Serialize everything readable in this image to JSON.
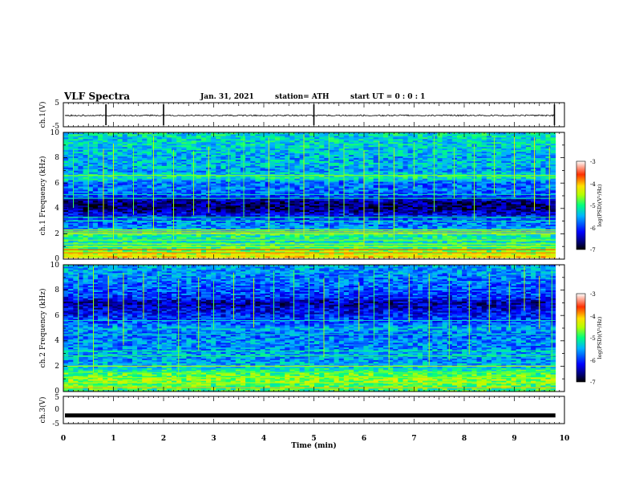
{
  "header": {
    "title": "VLF Spectra",
    "date": "Jan. 31, 2021",
    "station": "station= ATH",
    "start": "start  UT =   0 : 0  : 1"
  },
  "chart_data": [
    {
      "type": "line",
      "name": "ch.1 waveform",
      "ylabel": "ch.1(V)",
      "xlim": [
        0,
        10
      ],
      "ylim": [
        -5,
        5
      ],
      "yticks": [
        "5",
        "-5"
      ],
      "level": -0.3,
      "noise": 0.3,
      "spikes": [
        0.85,
        2.0,
        5.0,
        9.8
      ]
    },
    {
      "type": "heatmap",
      "name": "ch.1 spectrogram",
      "ylabel": "ch.1  Frequency (kHz)",
      "xlim": [
        0,
        9.82
      ],
      "ylim": [
        0,
        10
      ],
      "yticks": [
        "0",
        "2",
        "4",
        "6",
        "8",
        "10"
      ],
      "zlim": [
        -7,
        -3
      ],
      "colorbar_label": "log(PSD)(V²/Hz)",
      "colorbar_ticks": [
        "-3",
        "-4",
        "-5",
        "-6",
        "-7"
      ],
      "profile_khz": [
        0,
        0.5,
        1.0,
        1.5,
        2.0,
        2.5,
        3.0,
        3.5,
        4.0,
        4.5,
        5.0,
        5.5,
        6.0,
        6.5,
        7.0,
        7.5,
        8.0,
        8.5,
        9.0,
        9.5,
        10.0
      ],
      "profile_logpsd": [
        -4.0,
        -4.5,
        -5.0,
        -5.2,
        -5.0,
        -5.6,
        -5.8,
        -6.2,
        -6.7,
        -6.6,
        -6.0,
        -5.7,
        -5.8,
        -5.1,
        -5.6,
        -5.4,
        -5.5,
        -5.4,
        -5.3,
        -5.3,
        -5.2
      ],
      "lines_khz": [
        0.05,
        0.3,
        0.5,
        0.75,
        1.0,
        1.2,
        1.5,
        2.0,
        2.15,
        2.3,
        3.0,
        3.3,
        4.8,
        5.1,
        6.6
      ],
      "lines_logpsd": [
        -3.0,
        -4.2,
        -3.8,
        -3.6,
        -4.4,
        -4.5,
        -4.6,
        -4.2,
        -4.0,
        -4.4,
        -5.1,
        -5.0,
        -5.1,
        -5.2,
        -4.6
      ],
      "events_min": [
        0.2,
        0.5,
        0.8,
        1.0,
        1.4,
        1.8,
        2.2,
        2.6,
        2.9,
        3.3,
        3.6,
        4.1,
        4.5,
        4.8,
        5.3,
        5.6,
        6.0,
        6.3,
        6.6,
        7.0,
        7.4,
        7.8,
        8.2,
        8.6,
        9.0,
        9.4,
        9.7
      ]
    },
    {
      "type": "heatmap",
      "name": "ch.2 spectrogram",
      "ylabel": "ch.2  Frequency (kHz)",
      "xlim": [
        0,
        9.82
      ],
      "ylim": [
        0,
        10
      ],
      "yticks": [
        "0",
        "2",
        "4",
        "6",
        "8",
        "10"
      ],
      "zlim": [
        -7,
        -3
      ],
      "colorbar_label": "log(PSD)(V²/Hz)",
      "colorbar_ticks": [
        "-3",
        "-4",
        "-5",
        "-6",
        "-7"
      ],
      "profile_khz": [
        0,
        0.5,
        1.0,
        1.5,
        2.0,
        2.5,
        3.0,
        3.5,
        4.0,
        4.5,
        5.0,
        5.5,
        6.0,
        6.5,
        7.0,
        7.5,
        8.0,
        8.5,
        9.0,
        9.5,
        10.0
      ],
      "profile_logpsd": [
        -5.0,
        -4.8,
        -4.6,
        -4.9,
        -5.4,
        -5.6,
        -5.5,
        -5.7,
        -5.6,
        -5.8,
        -5.5,
        -5.9,
        -6.1,
        -6.3,
        -6.5,
        -6.0,
        -5.9,
        -5.8,
        -5.7,
        -5.6,
        -5.5
      ],
      "lines_khz": [
        0.3,
        0.7,
        1.1,
        1.5,
        2.0,
        2.8,
        3.2,
        4.5,
        5.6
      ],
      "lines_logpsd": [
        -4.0,
        -4.4,
        -4.6,
        -4.8,
        -4.3,
        -4.9,
        -5.0,
        -5.2,
        -5.3
      ],
      "events_min": [
        0.3,
        0.6,
        0.9,
        1.2,
        1.6,
        1.9,
        2.3,
        2.7,
        3.0,
        3.4,
        3.8,
        4.2,
        4.6,
        4.9,
        5.2,
        5.5,
        5.9,
        6.2,
        6.5,
        6.9,
        7.3,
        7.7,
        8.1,
        8.5,
        8.9,
        9.2,
        9.5,
        9.75
      ]
    },
    {
      "type": "line",
      "name": "ch.3 waveform",
      "ylabel": "ch.3(V)",
      "xlabel": "Time (min)",
      "xlim": [
        0,
        10
      ],
      "ylim": [
        -5,
        5
      ],
      "yticks": [
        "5",
        "0",
        "-5"
      ],
      "xticks": [
        "0",
        "1",
        "2",
        "3",
        "4",
        "5",
        "6",
        "7",
        "8",
        "9",
        "10"
      ],
      "level": -2.0,
      "noise": 0.4,
      "spikes": []
    }
  ]
}
